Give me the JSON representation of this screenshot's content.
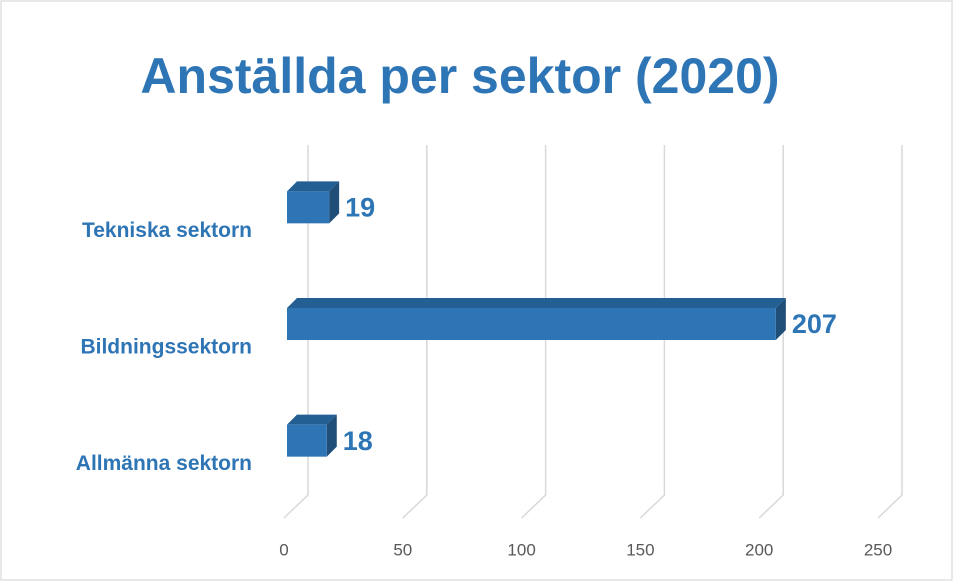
{
  "chart_data": {
    "type": "bar",
    "title": "Anställda per sektor (2020)",
    "categories": [
      "Tekniska sektorn",
      "Bildningssektorn",
      "Allmänna sektorn"
    ],
    "values": [
      19,
      207,
      18
    ],
    "color": "#2e75b6",
    "xlim": [
      0,
      250
    ],
    "xticks": [
      0,
      50,
      100,
      150,
      200,
      250
    ],
    "grid": true
  }
}
